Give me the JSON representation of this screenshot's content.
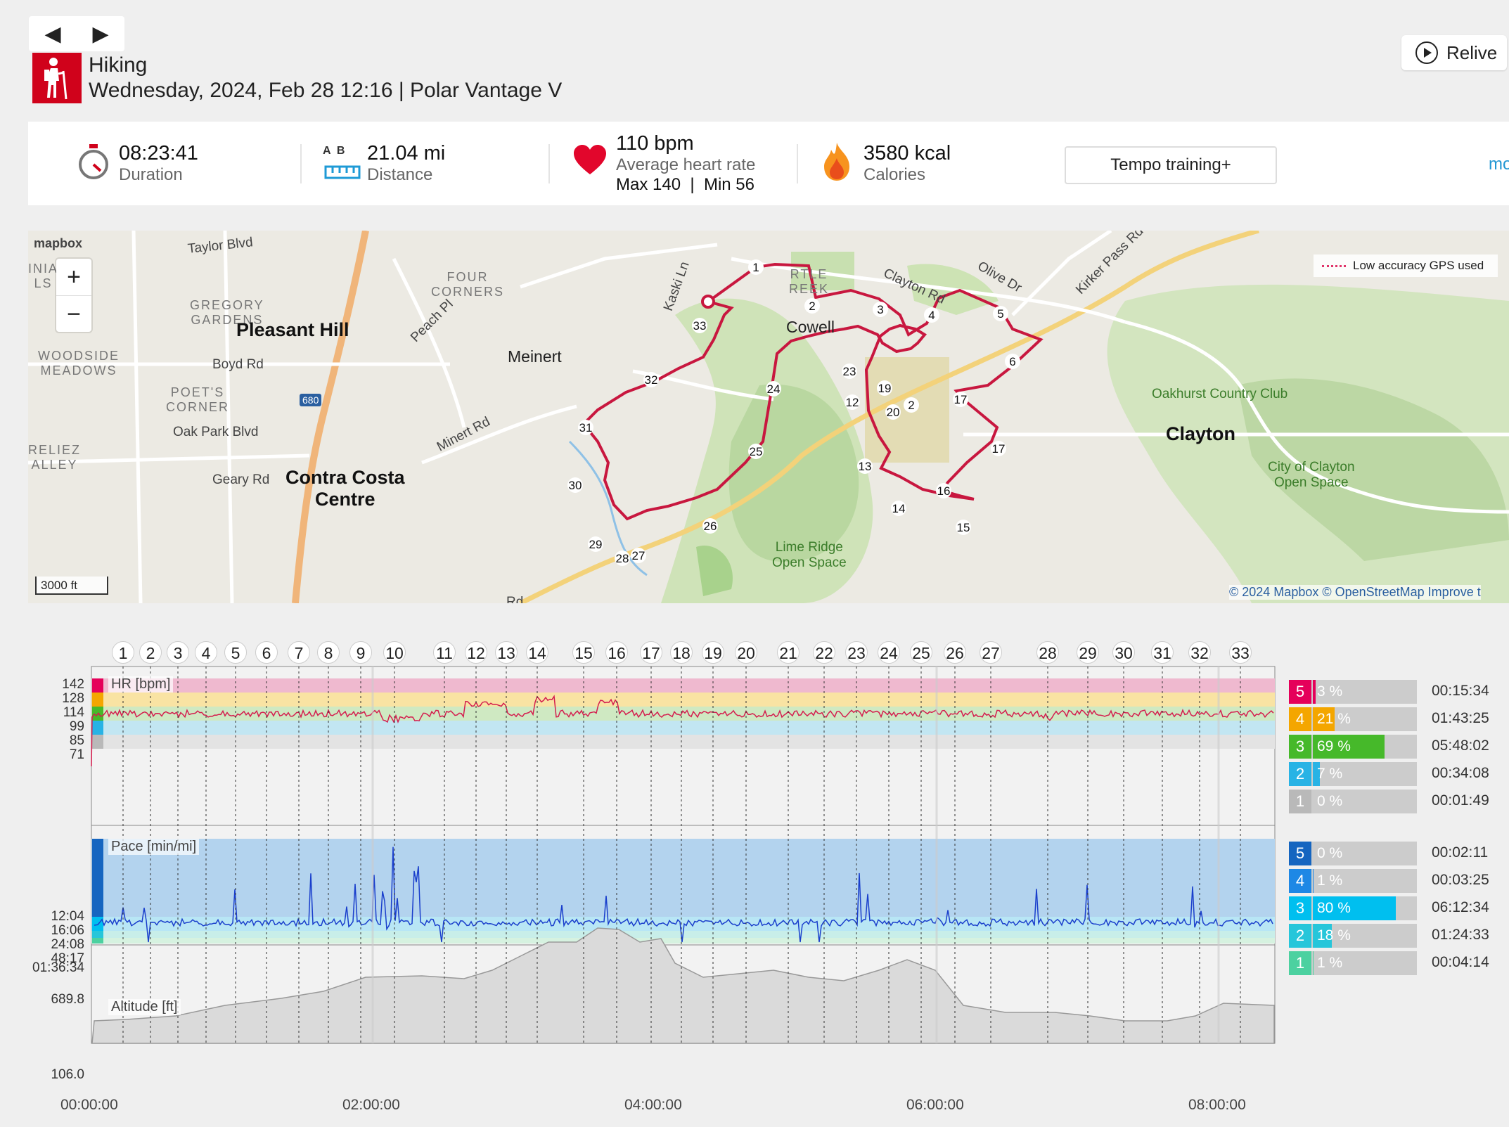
{
  "nav": {
    "prev": "◀",
    "next": "▶"
  },
  "activity": {
    "sport": "Hiking",
    "datetime_line": "Wednesday, 2024, Feb 28 12:16 | Polar Vantage V"
  },
  "relive_label": "Relive",
  "summary": {
    "duration": {
      "value": "08:23:41",
      "label": "Duration"
    },
    "distance": {
      "value": "21.04 mi",
      "label": "Distance",
      "ab": "A  B"
    },
    "heart": {
      "value": "110 bpm",
      "label": "Average heart rate",
      "maxmin": "Max 140  |  Min 56"
    },
    "calories": {
      "value": "3580 kcal",
      "label": "Calories"
    },
    "training_label": "Tempo training+",
    "more_label": "mo"
  },
  "map": {
    "brand": "mapbox",
    "zoom_in": "+",
    "zoom_out": "−",
    "gps_legend": "Low accuracy GPS used",
    "scale": "3000 ft",
    "attribution": "© 2024 Mapbox © OpenStreetMap Improve t",
    "places": [
      {
        "text": "Taylor Blvd",
        "cls": "road"
      },
      {
        "text": "GREGORY\nGARDENS",
        "cls": "area"
      },
      {
        "text": "FOUR\nCORNERS",
        "cls": "area"
      },
      {
        "text": "Pleasant Hill",
        "cls": "city"
      },
      {
        "text": "WOODSIDE\nMEADOWS",
        "cls": "area"
      },
      {
        "text": "Boyd Rd",
        "cls": "road"
      },
      {
        "text": "POET'S\nCORNER",
        "cls": "area"
      },
      {
        "text": "Oak Park Blvd",
        "cls": "road"
      },
      {
        "text": "Geary Rd",
        "cls": "road"
      },
      {
        "text": "Contra Costa\nCentre",
        "cls": "city"
      },
      {
        "text": "Meinert",
        "cls": "town"
      },
      {
        "text": "Minert Rd",
        "cls": "road"
      },
      {
        "text": "Peach Pl",
        "cls": "road"
      },
      {
        "text": "Kaski Ln",
        "cls": "road"
      },
      {
        "text": "Cowell",
        "cls": "town"
      },
      {
        "text": "Clayton Rd",
        "cls": "road"
      },
      {
        "text": "Olive Dr",
        "cls": "road"
      },
      {
        "text": "Kirker Pass Rd",
        "cls": "road"
      },
      {
        "text": "Oakhurst Country Club",
        "cls": "park"
      },
      {
        "text": "Clayton",
        "cls": "city"
      },
      {
        "text": "City of Clayton\nOpen Space",
        "cls": "park"
      },
      {
        "text": "Lime Ridge\nOpen Space",
        "cls": "park"
      },
      {
        "text": "RTLE\nREEK",
        "cls": "area"
      },
      {
        "text": "680",
        "cls": "shield"
      },
      {
        "text": "INIA\nLS",
        "cls": "area"
      },
      {
        "text": "RELIEZ\nALLEY",
        "cls": "area"
      },
      {
        "text": "Rd",
        "cls": "road"
      }
    ]
  },
  "laps": [
    "1",
    "2",
    "3",
    "4",
    "5",
    "6",
    "7",
    "8",
    "9",
    "10",
    "11",
    "12",
    "13",
    "14",
    "15",
    "16",
    "17",
    "18",
    "19",
    "20",
    "21",
    "22",
    "23",
    "24",
    "25",
    "26",
    "27",
    "28",
    "29",
    "30",
    "31",
    "32",
    "33"
  ],
  "hr_panel": {
    "title": "HR [bpm]",
    "yticks": [
      "142",
      "128",
      "114",
      "99",
      "85",
      "71"
    ],
    "zones": [
      {
        "num": "5",
        "pct": "3 %",
        "frac": 0.03,
        "time": "00:15:34",
        "color": "#e5005a"
      },
      {
        "num": "4",
        "pct": "21 %",
        "frac": 0.21,
        "time": "01:43:25",
        "color": "#f4a600"
      },
      {
        "num": "3",
        "pct": "69 %",
        "frac": 0.69,
        "time": "05:48:02",
        "color": "#46b92a"
      },
      {
        "num": "2",
        "pct": "7 %",
        "frac": 0.07,
        "time": "00:34:08",
        "color": "#28b3e5"
      },
      {
        "num": "1",
        "pct": "0 %",
        "frac": 0.0,
        "time": "00:01:49",
        "color": "#b9b9b9"
      }
    ]
  },
  "pace_panel": {
    "title": "Pace [min/mi]",
    "yticks": [
      "12:04",
      "16:06",
      "24:08",
      "48:17",
      "01:36:34"
    ],
    "zones": [
      {
        "num": "5",
        "pct": "0 %",
        "frac": 0.0,
        "time": "00:02:11",
        "color": "#1565c0"
      },
      {
        "num": "4",
        "pct": "1 %",
        "frac": 0.01,
        "time": "00:03:25",
        "color": "#1e88e5"
      },
      {
        "num": "3",
        "pct": "80 %",
        "frac": 0.8,
        "time": "06:12:34",
        "color": "#00bfef"
      },
      {
        "num": "2",
        "pct": "18 %",
        "frac": 0.18,
        "time": "01:24:33",
        "color": "#26c6da"
      },
      {
        "num": "1",
        "pct": "1 %",
        "frac": 0.01,
        "time": "00:04:14",
        "color": "#4cd1a0"
      }
    ]
  },
  "altitude_panel": {
    "title": "Altitude [ft]",
    "ymax": "689.8",
    "ymin": "106.0"
  },
  "time_axis": [
    "00:00:00",
    "02:00:00",
    "04:00:00",
    "06:00:00",
    "08:00:00"
  ]
}
